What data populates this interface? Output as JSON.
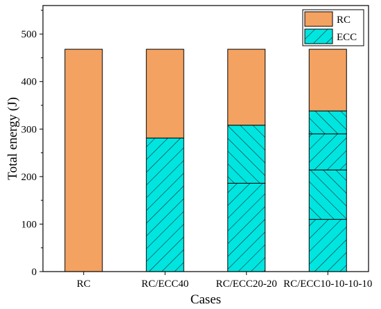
{
  "chart_data": {
    "type": "bar",
    "stacked": true,
    "xlabel": "Cases",
    "ylabel": "Total energy (J)",
    "ylim": [
      0,
      560
    ],
    "yticks": [
      0,
      100,
      200,
      300,
      400,
      500
    ],
    "categories": [
      "RC",
      "RC/ECC40",
      "RC/ECC20-20",
      "RC/ECC10-10-10-10"
    ],
    "series": [
      {
        "name": "ECC",
        "color": "#00e5e0",
        "values": [
          0,
          281,
          308,
          338
        ]
      },
      {
        "name": "RC",
        "color": "#f4a261",
        "values": [
          468,
          187,
          160,
          130
        ]
      }
    ],
    "layers": [
      [],
      [
        281
      ],
      [
        186,
        122
      ],
      [
        110,
        104,
        76,
        48
      ]
    ],
    "legend": {
      "position": "top-right",
      "entries": [
        "RC",
        "ECC"
      ]
    },
    "grid": false
  }
}
